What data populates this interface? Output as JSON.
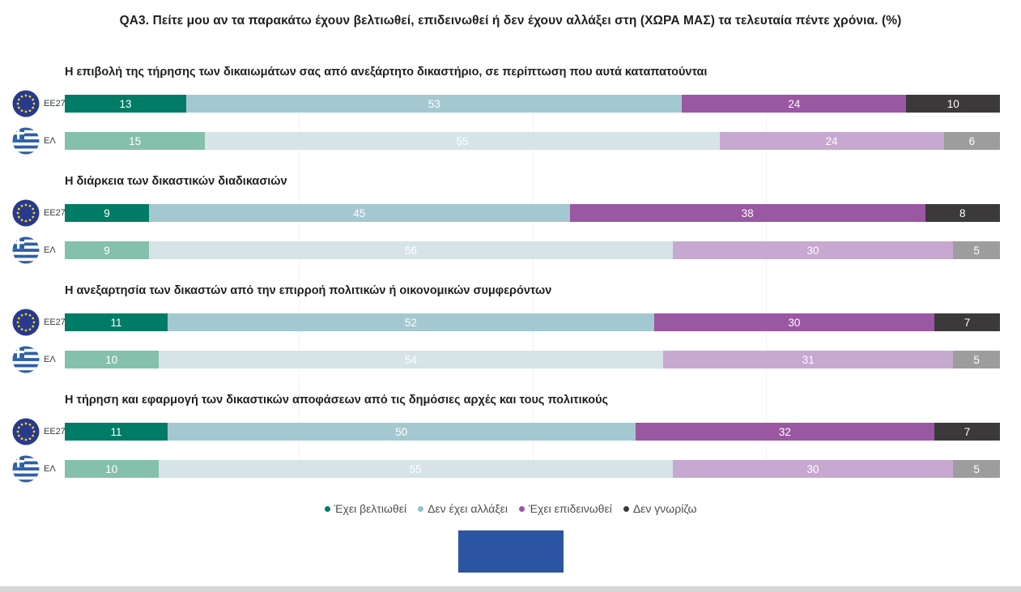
{
  "title": "QA3. Πείτε μου αν τα παρακάτω έχουν βελτιωθεί, επιδεινωθεί ή δεν έχουν αλλάξει στη (ΧΩΡΑ ΜΑΣ) τα τελευταία πέντε χρόνια. (%)",
  "legend": {
    "items": [
      {
        "label": "Έχει βελτιωθεί",
        "color": "#007c66"
      },
      {
        "label": "Δεν έχει αλλάξει",
        "color": "#8ec2cb"
      },
      {
        "label": "Έχει επιδεινωθεί",
        "color": "#9a57a2"
      },
      {
        "label": "Δεν γνωρίζω",
        "color": "#3b393a"
      }
    ]
  },
  "palette": {
    "eu": [
      "#007c66",
      "#a4c8cf",
      "#9a57a2",
      "#3b393a"
    ],
    "el": [
      "#84c0ac",
      "#d6e4e8",
      "#c7a8d0",
      "#9e9d9d"
    ],
    "value_text": "#ffffff",
    "gridline": "#f2f2f2"
  },
  "footer": {
    "logo_color": "#2b54a1",
    "scrollbar_color": "#d6d6d6"
  },
  "chart_data": {
    "type": "bar",
    "stacked": true,
    "orientation": "horizontal",
    "unit": "%",
    "xlim": [
      0,
      100
    ],
    "gridlines_percent": [
      25,
      50,
      75
    ],
    "legend_position": "bottom",
    "title": "QA3. Πείτε μου αν τα παρακάτω έχουν βελτιωθεί, επιδεινωθεί ή δεν έχουν αλλάξει στη (ΧΩΡΑ ΜΑΣ) τα τελευταία πέντε χρόνια. (%)",
    "categories": [
      "Έχει βελτιωθεί",
      "Δεν έχει αλλάξει",
      "Έχει επιδεινωθεί",
      "Δεν γνωρίζω"
    ],
    "sections": [
      {
        "label": "Η επιβολή της τήρησης των δικαιωμάτων σας από ανεξάρτητο δικαστήριο, σε περίπτωση που αυτά καταπατούνται",
        "rows": [
          {
            "flag": "eu",
            "label": "EE27",
            "values": [
              13,
              53,
              24,
              10
            ]
          },
          {
            "flag": "el",
            "label": "ΕΛ",
            "values": [
              15,
              55,
              24,
              6
            ]
          }
        ]
      },
      {
        "label": "Η διάρκεια των δικαστικών διαδικασιών",
        "rows": [
          {
            "flag": "eu",
            "label": "EE27",
            "values": [
              9,
              45,
              38,
              8
            ]
          },
          {
            "flag": "el",
            "label": "ΕΛ",
            "values": [
              9,
              56,
              30,
              5
            ]
          }
        ]
      },
      {
        "label": "Η ανεξαρτησία των δικαστών από την επιρροή πολιτικών ή οικονομικών συμφερόντων",
        "rows": [
          {
            "flag": "eu",
            "label": "EE27",
            "values": [
              11,
              52,
              30,
              7
            ]
          },
          {
            "flag": "el",
            "label": "ΕΛ",
            "values": [
              10,
              54,
              31,
              5
            ]
          }
        ]
      },
      {
        "label": "Η τήρηση και εφαρμογή των δικαστικών αποφάσεων από τις δημόσιες αρχές και τους πολιτικούς",
        "rows": [
          {
            "flag": "eu",
            "label": "EE27",
            "values": [
              11,
              50,
              32,
              7
            ]
          },
          {
            "flag": "el",
            "label": "ΕΛ",
            "values": [
              10,
              55,
              30,
              5
            ]
          }
        ]
      }
    ]
  }
}
